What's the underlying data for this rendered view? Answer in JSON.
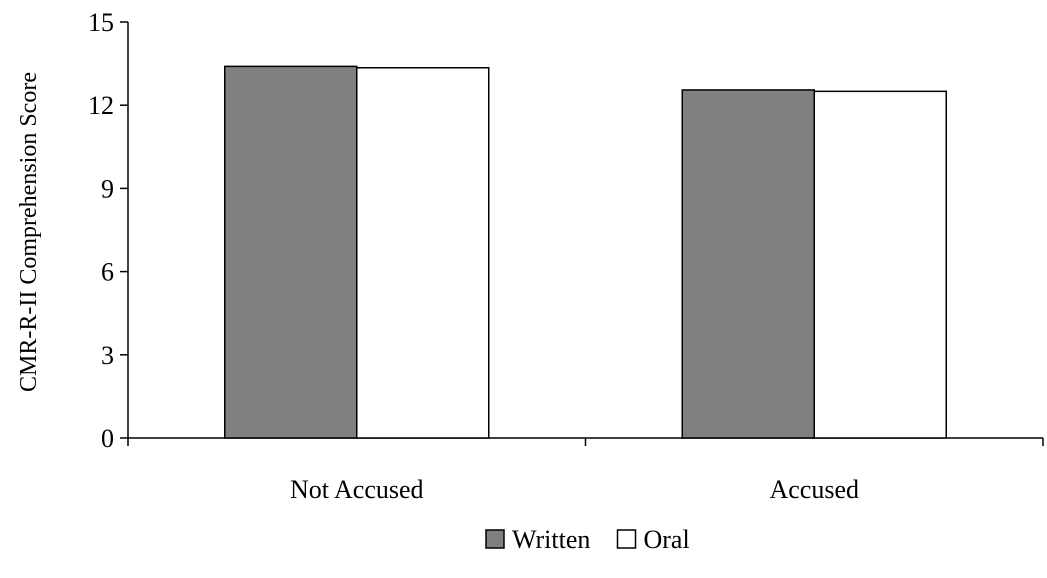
{
  "chart_data": {
    "type": "bar",
    "title": "",
    "xlabel": "",
    "ylabel": "CMR-R-II Comprehension Score",
    "categories": [
      "Not Accused",
      "Accused"
    ],
    "series": [
      {
        "name": "Written",
        "values": [
          13.4,
          12.55
        ],
        "color": "#808080"
      },
      {
        "name": "Oral",
        "values": [
          13.35,
          12.5
        ],
        "color": "#ffffff"
      }
    ],
    "ylim": [
      0,
      15
    ],
    "yticks": [
      0,
      3,
      6,
      9,
      12,
      15
    ],
    "grid": false,
    "legend": "bottom-center"
  }
}
